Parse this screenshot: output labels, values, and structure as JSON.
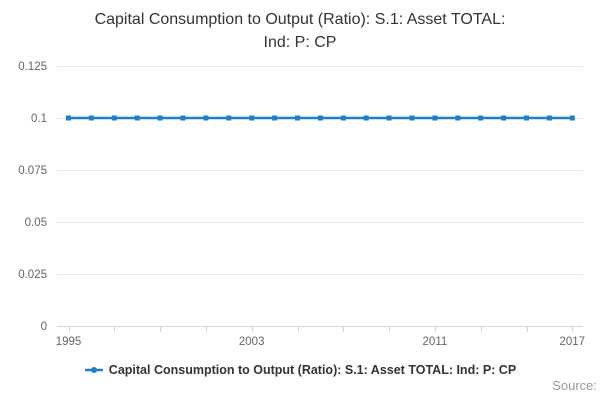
{
  "title_lines": [
    "Capital Consumption to Output (Ratio): S.1: Asset TOTAL:",
    "Ind: P: CP"
  ],
  "legend": {
    "label": "Capital Consumption to Output (Ratio): S.1: Asset TOTAL: Ind: P: CP"
  },
  "source_label": "Source:",
  "colors": {
    "series": "#1d7fc7",
    "gridline": "#e6e6e6",
    "axis_line": "#ccd6eb",
    "tick": "#ccd6eb",
    "axis_label_text": "#666666",
    "title_text": "#333333",
    "legend_text": "#333333",
    "source_text": "#999999",
    "background": "#ffffff"
  },
  "chart_data": {
    "type": "line",
    "title": "Capital Consumption to Output (Ratio): S.1: Asset TOTAL: Ind: P: CP",
    "xlabel": "",
    "ylabel": "",
    "x": [
      1995,
      1996,
      1997,
      1998,
      1999,
      2000,
      2001,
      2002,
      2003,
      2004,
      2005,
      2006,
      2007,
      2008,
      2009,
      2010,
      2011,
      2012,
      2013,
      2014,
      2015,
      2016,
      2017
    ],
    "series": [
      {
        "name": "Capital Consumption to Output (Ratio): S.1: Asset TOTAL: Ind: P: CP",
        "values": [
          0.1,
          0.1,
          0.1,
          0.1,
          0.1,
          0.1,
          0.1,
          0.1,
          0.1,
          0.1,
          0.1,
          0.1,
          0.1,
          0.1,
          0.1,
          0.1,
          0.1,
          0.1,
          0.1,
          0.1,
          0.1,
          0.1,
          0.1
        ]
      }
    ],
    "xlim": [
      1995,
      2017
    ],
    "ylim": [
      0,
      0.125
    ],
    "yticks": [
      0,
      0.025,
      0.05,
      0.075,
      0.1,
      0.125
    ],
    "ytick_labels": [
      "0",
      "0.025",
      "0.05",
      "0.075",
      "0.1",
      "0.125"
    ],
    "xtick_step_years": 2,
    "xtick_labeled_years": [
      1995,
      2003,
      2011,
      2017
    ],
    "grid": true,
    "marker": "square",
    "legend_position": "bottom-center"
  }
}
